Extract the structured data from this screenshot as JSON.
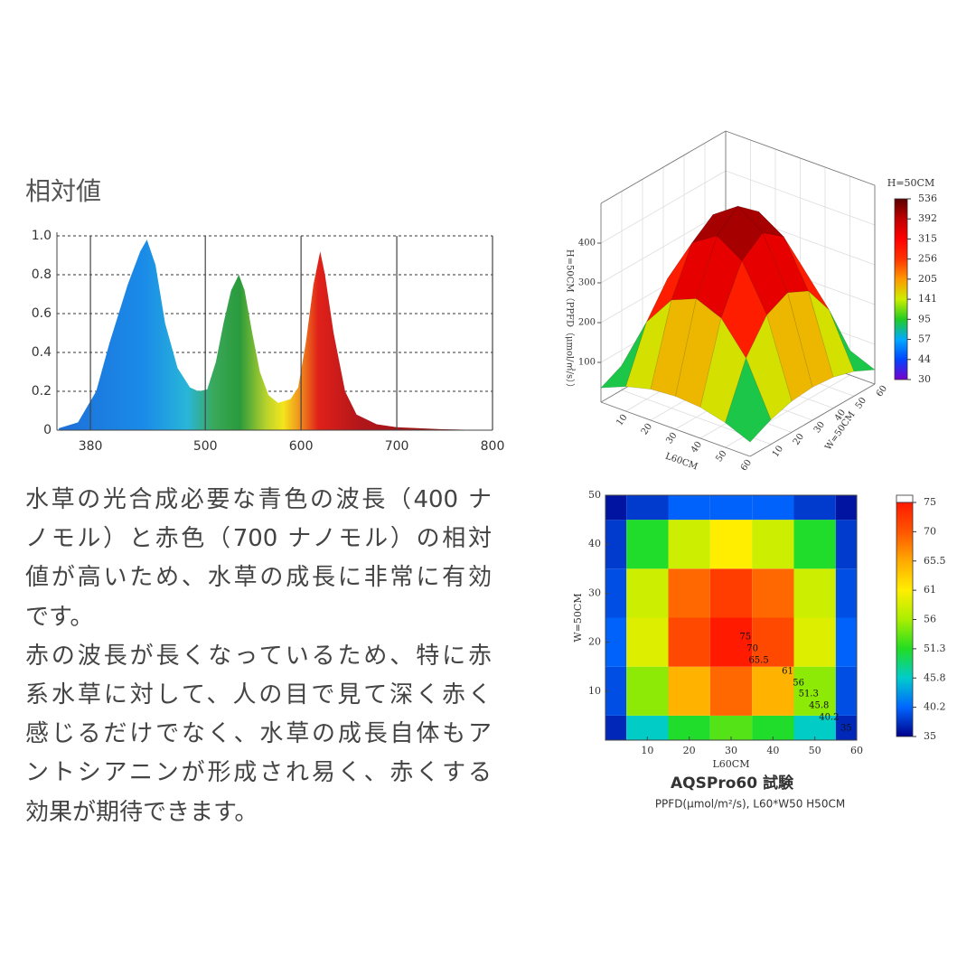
{
  "description": {
    "paragraphs": [
      [
        "水草の光合成必要な青色の波長（400 ナ",
        "ノモル）と赤色（700 ナノモル）の相対",
        "値が高いため、水草の成長に非常に有効",
        "です。"
      ],
      [
        "赤の波長が長くなっているため、特に赤",
        "系水草に対して、人の目で見て深く赤く",
        "感じるだけでなく、水草の成長自体もア",
        "ントシアニンが形成され易く、赤くする",
        "効果が期待できます。"
      ]
    ]
  },
  "chart_data": [
    {
      "type": "area",
      "title": "相対値",
      "x": [
        347,
        367,
        386,
        400,
        419,
        432,
        439,
        448,
        458,
        471,
        484,
        493,
        502,
        511,
        519,
        527,
        535,
        541,
        549,
        557,
        566,
        576,
        589,
        597,
        605,
        613,
        620,
        625,
        634,
        646,
        658,
        679,
        700,
        745,
        800
      ],
      "values": [
        0.01,
        0.04,
        0.2,
        0.45,
        0.75,
        0.92,
        0.98,
        0.85,
        0.55,
        0.32,
        0.22,
        0.2,
        0.21,
        0.35,
        0.55,
        0.72,
        0.8,
        0.72,
        0.5,
        0.3,
        0.18,
        0.14,
        0.16,
        0.22,
        0.45,
        0.75,
        0.92,
        0.8,
        0.5,
        0.2,
        0.08,
        0.03,
        0.015,
        0.005,
        0
      ],
      "xlim": [
        345,
        800
      ],
      "xticks": [
        380,
        500,
        600,
        700,
        800
      ],
      "ylim": [
        0,
        1
      ],
      "yticks": [
        0,
        0.2,
        0.4,
        0.6,
        0.8,
        {
          "value": 1,
          "label": "1.0"
        }
      ],
      "grid": true
    },
    {
      "type": "surface",
      "title": "H=50CM",
      "xlabel": "L60CM",
      "ylabel": "W=50CM",
      "zlabel": "H=50CM（PPFD（μmol/㎡/s））",
      "x": [
        0,
        10,
        20,
        30,
        40,
        50,
        60
      ],
      "y": [
        0,
        10,
        20,
        30,
        40,
        50,
        60
      ],
      "z": [
        [
          36,
          62,
          78,
          83,
          78,
          62,
          36
        ],
        [
          62,
          194,
          272,
          298,
          272,
          194,
          62
        ],
        [
          78,
          272,
          386,
          426,
          386,
          272,
          78
        ],
        [
          83,
          298,
          426,
          470,
          426,
          298,
          83
        ],
        [
          78,
          272,
          386,
          426,
          386,
          272,
          78
        ],
        [
          62,
          194,
          272,
          298,
          272,
          194,
          62
        ],
        [
          36,
          62,
          78,
          83,
          78,
          62,
          36
        ]
      ],
      "xlim": [
        0,
        60
      ],
      "ylim": [
        0,
        60
      ],
      "zlim": [
        0,
        500
      ],
      "xticks": [
        10,
        20,
        30,
        40,
        50,
        60
      ],
      "yticks": [
        10,
        20,
        30,
        40,
        50,
        60
      ],
      "zticks": [
        100,
        200,
        300,
        400
      ],
      "colorbar": {
        "ticks": [
          536,
          392,
          315,
          256,
          205,
          141,
          95,
          57,
          44,
          30
        ],
        "colors": [
          "#5a0000",
          "#c00000",
          "#ff0000",
          "#ff3300",
          "#ff9900",
          "#ccee00",
          "#22cc22",
          "#00aaff",
          "#0044ff",
          "#7700cc"
        ]
      }
    },
    {
      "type": "heatmap",
      "title": "AQSPro60 試験",
      "subtitle": "PPFD(μmol/m²/s), L60*W50 H50CM",
      "xlabel": "L60CM",
      "ylabel": "W=50CM",
      "x": [
        0,
        10,
        20,
        30,
        40,
        50,
        60
      ],
      "y": [
        0,
        10,
        20,
        30,
        40,
        50
      ],
      "z": [
        [
          37,
          46,
          51,
          53,
          51,
          46,
          37
        ],
        [
          39,
          55,
          65,
          69,
          65,
          55,
          39
        ],
        [
          40,
          59,
          71,
          75,
          71,
          59,
          40
        ],
        [
          39,
          58,
          69,
          72,
          69,
          58,
          39
        ],
        [
          38,
          51,
          58,
          61,
          58,
          51,
          38
        ],
        [
          36,
          38,
          40,
          40,
          40,
          38,
          36
        ]
      ],
      "xlim": [
        0,
        60
      ],
      "ylim": [
        0,
        50
      ],
      "xticks": [
        10,
        20,
        30,
        40,
        50,
        60
      ],
      "yticks": [
        10,
        20,
        30,
        40,
        50
      ],
      "colorbar": {
        "ticks": [
          75,
          70,
          65.5,
          61,
          56,
          51.3,
          45.8,
          40.2,
          35
        ],
        "colors": [
          "#ff1a00",
          "#ff5500",
          "#ffaa00",
          "#ffee00",
          "#aaee00",
          "#22dd22",
          "#00cccc",
          "#0066ff",
          "#00008b"
        ]
      },
      "annotations": [
        {
          "text": "75",
          "x": 33.4,
          "y": 21
        },
        {
          "text": "70",
          "x": 35.1,
          "y": 18.6
        },
        {
          "text": "65.5",
          "x": 36.6,
          "y": 16.2
        },
        {
          "text": "61",
          "x": 43.5,
          "y": 14
        },
        {
          "text": "56",
          "x": 46.1,
          "y": 11.6
        },
        {
          "text": "51.3",
          "x": 48.5,
          "y": 9.4
        },
        {
          "text": "45.8",
          "x": 51,
          "y": 7
        },
        {
          "text": "40.2",
          "x": 53.4,
          "y": 4.6
        },
        {
          "text": "35",
          "x": 57.5,
          "y": 2.4
        }
      ]
    }
  ]
}
